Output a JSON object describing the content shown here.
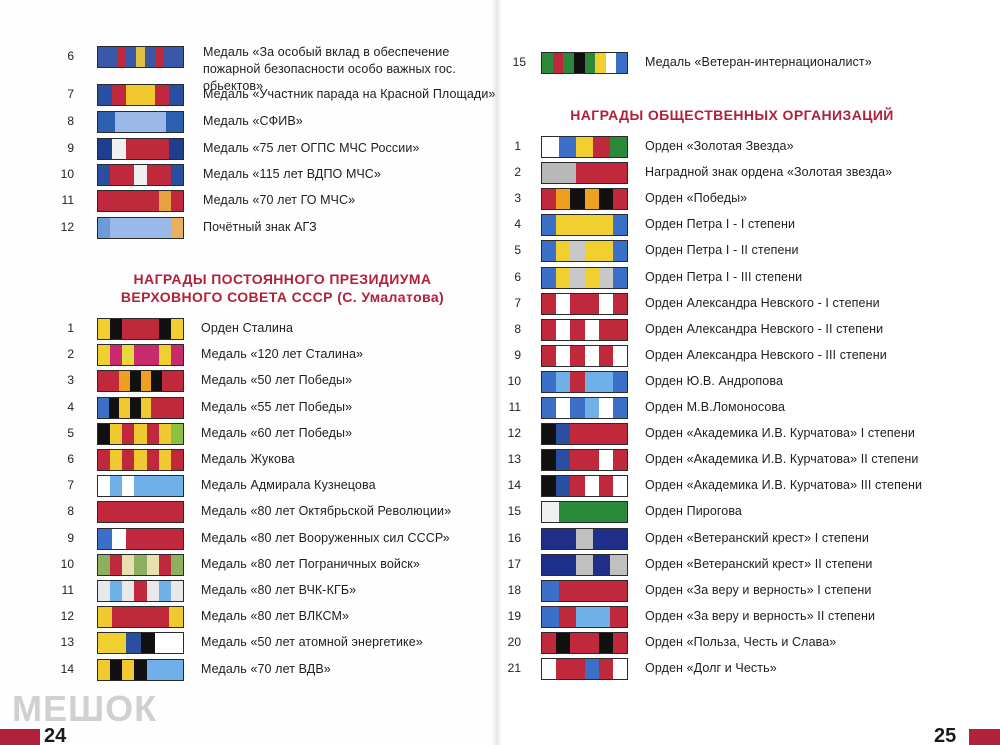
{
  "left_page": {
    "number": "24",
    "top_items": [
      {
        "num": "6",
        "label": "Медаль «За особый вклад в обеспечение пожарной безопасности особо важных гос. обьектов»",
        "ribbon": [
          "#3b58a8",
          "#3b58a8",
          "#c0283c",
          "#3b58a8",
          "#e0c040",
          "#3b58a8",
          "#c0283c",
          "#3b58a8",
          "#3b58a8"
        ]
      },
      {
        "num": "7",
        "label": "Медаль «Участник парада на Красной Площади»",
        "ribbon": [
          "#2a4fa0",
          "#c0283c",
          "#f0c830",
          "#f0c830",
          "#c0283c",
          "#2a4fa0"
        ]
      },
      {
        "num": "8",
        "label": "Медаль «СФИВ»",
        "ribbon": [
          "#2d5fb0",
          "#9ab8e8",
          "#9ab8e8",
          "#9ab8e8",
          "#2d5fb0"
        ]
      },
      {
        "num": "9",
        "label": "Медаль «75 лет ОГПС МЧС России»",
        "ribbon": [
          "#1e3f90",
          "#f0f0f0",
          "#c0283c",
          "#c0283c",
          "#c0283c",
          "#1e3f90"
        ]
      },
      {
        "num": "10",
        "label": "Медаль «115 лет ВДПО МЧС»",
        "ribbon": [
          "#2a4fa0",
          "#c0283c",
          "#c0283c",
          "#f0f0f0",
          "#c0283c",
          "#c0283c",
          "#2a4fa0"
        ]
      },
      {
        "num": "11",
        "label": "Медаль «70 лет ГО МЧС»",
        "ribbon": [
          "#c0283c",
          "#c0283c",
          "#c0283c",
          "#c0283c",
          "#c0283c",
          "#e8a040",
          "#c0283c"
        ]
      },
      {
        "num": "12",
        "label": "Почётный знак АГЗ",
        "ribbon": [
          "#6f9ad8",
          "#9ab8e8",
          "#9ab8e8",
          "#9ab8e8",
          "#9ab8e8",
          "#9ab8e8",
          "#e8b060"
        ]
      }
    ],
    "section_title_line1": "НАГРАДЫ ПОСТОЯННОГО ПРЕЗИДИУМА",
    "section_title_line2": "ВЕРХОВНОГО СОВЕТА СССР (С. Умалатова)",
    "section_items": [
      {
        "num": "1",
        "label": "Орден Сталина",
        "ribbon": [
          "#f0d030",
          "#111111",
          "#c0283c",
          "#c0283c",
          "#c0283c",
          "#111111",
          "#f0d030"
        ]
      },
      {
        "num": "2",
        "label": "Медаль «120 лет Сталина»",
        "ribbon": [
          "#f0d030",
          "#c82a6e",
          "#e8d840",
          "#c82a6e",
          "#c82a6e",
          "#f0d030",
          "#c82a6e"
        ]
      },
      {
        "num": "3",
        "label": "Медаль «50 лет Победы»",
        "ribbon": [
          "#c0283c",
          "#c0283c",
          "#f0a020",
          "#111111",
          "#f0a020",
          "#111111",
          "#c0283c",
          "#c0283c"
        ]
      },
      {
        "num": "4",
        "label": "Медаль «55 лет Победы»",
        "ribbon": [
          "#3b6fc8",
          "#111111",
          "#f0c830",
          "#111111",
          "#f0c830",
          "#c0283c",
          "#c0283c",
          "#c0283c"
        ]
      },
      {
        "num": "5",
        "label": "Медаль «60 лет Победы»",
        "ribbon": [
          "#111111",
          "#f0c830",
          "#c0283c",
          "#f0c830",
          "#c0283c",
          "#f0c830",
          "#8cc040"
        ]
      },
      {
        "num": "6",
        "label": "Медаль Жукова",
        "ribbon": [
          "#c0283c",
          "#f0c830",
          "#c0283c",
          "#f0c830",
          "#c0283c",
          "#f0c830",
          "#c0283c"
        ]
      },
      {
        "num": "7",
        "label": "Медаль Адмирала Кузнецова",
        "ribbon": [
          "#ffffff",
          "#6fb0e8",
          "#ffffff",
          "#6fb0e8",
          "#6fb0e8",
          "#6fb0e8",
          "#6fb0e8"
        ]
      },
      {
        "num": "8",
        "label": "Медаль «80 лет Октябрьской Революции»",
        "ribbon": [
          "#c0283c",
          "#c0283c",
          "#c0283c",
          "#c0283c",
          "#c0283c"
        ]
      },
      {
        "num": "9",
        "label": "Медаль «80 лет Вооруженных сил СССР»",
        "ribbon": [
          "#3b6fc8",
          "#ffffff",
          "#c0283c",
          "#c0283c",
          "#c0283c",
          "#c0283c"
        ]
      },
      {
        "num": "10",
        "label": "Медаль «80 лет Пограничных войск»",
        "ribbon": [
          "#8cb060",
          "#c0283c",
          "#e8e0b0",
          "#8cb060",
          "#e8e0b0",
          "#c0283c",
          "#8cb060"
        ]
      },
      {
        "num": "11",
        "label": "Медаль «80 лет ВЧК-КГБ»",
        "ribbon": [
          "#e8e8e8",
          "#6fb0e8",
          "#e8e8e8",
          "#c0283c",
          "#e8e8e8",
          "#6fb0e8",
          "#e8e8e8"
        ]
      },
      {
        "num": "12",
        "label": "Медаль «80 лет ВЛКСМ»",
        "ribbon": [
          "#f0c830",
          "#c0283c",
          "#c0283c",
          "#c0283c",
          "#c0283c",
          "#f0c830"
        ]
      },
      {
        "num": "13",
        "label": "Медаль «50 лет атомной энергетике»",
        "ribbon": [
          "#f0d030",
          "#f0d030",
          "#2a4fa0",
          "#111111",
          "#ffffff",
          "#ffffff"
        ]
      },
      {
        "num": "14",
        "label": "Медаль «70 лет ВДВ»",
        "ribbon": [
          "#f0c830",
          "#111111",
          "#f0c830",
          "#111111",
          "#6fb0e8",
          "#6fb0e8",
          "#6fb0e8"
        ]
      }
    ]
  },
  "right_page": {
    "number": "25",
    "top_items": [
      {
        "num": "15",
        "label": "Медаль «Ветеран-интернационалист»",
        "ribbon": [
          "#2a8a3a",
          "#c0283c",
          "#2a8a3a",
          "#111111",
          "#2a8a3a",
          "#f0d030",
          "#ffffff",
          "#3b6fc8"
        ]
      }
    ],
    "section_title": "НАГРАДЫ ОБЩЕСТВЕННЫХ ОРГАНИЗАЦИЙ",
    "section_items": [
      {
        "num": "1",
        "label": "Орден «Золотая Звезда»",
        "ribbon": [
          "#ffffff",
          "#3b6fc8",
          "#f0d030",
          "#c0283c",
          "#2a8a3a"
        ]
      },
      {
        "num": "2",
        "label": "Наградной знак ордена «Золотая звезда»",
        "ribbon": [
          "#b8b8b8",
          "#b8b8b8",
          "#c0283c",
          "#c0283c",
          "#c0283c"
        ]
      },
      {
        "num": "3",
        "label": "Орден «Победы»",
        "ribbon": [
          "#c0283c",
          "#f0a020",
          "#111111",
          "#f0a020",
          "#111111",
          "#c0283c"
        ]
      },
      {
        "num": "4",
        "label": "Орден Петра I - I степени",
        "ribbon": [
          "#3b6fc8",
          "#f0d030",
          "#f0d030",
          "#f0d030",
          "#f0d030",
          "#3b6fc8"
        ]
      },
      {
        "num": "5",
        "label": "Орден Петра I - II степени",
        "ribbon": [
          "#3b6fc8",
          "#f0d030",
          "#c8c8c8",
          "#f0d030",
          "#f0d030",
          "#3b6fc8"
        ]
      },
      {
        "num": "6",
        "label": "Орден Петра I - III степени",
        "ribbon": [
          "#3b6fc8",
          "#f0d030",
          "#c8c8c8",
          "#f0d030",
          "#c8c8c8",
          "#3b6fc8"
        ]
      },
      {
        "num": "7",
        "label": "Орден Александра Невского - I степени",
        "ribbon": [
          "#c0283c",
          "#ffffff",
          "#c0283c",
          "#c0283c",
          "#ffffff",
          "#c0283c"
        ]
      },
      {
        "num": "8",
        "label": "Орден Александра Невского - II степени",
        "ribbon": [
          "#c0283c",
          "#ffffff",
          "#c0283c",
          "#ffffff",
          "#c0283c",
          "#c0283c"
        ]
      },
      {
        "num": "9",
        "label": "Орден Александра Невского - III степени",
        "ribbon": [
          "#c0283c",
          "#ffffff",
          "#c0283c",
          "#ffffff",
          "#c0283c",
          "#ffffff"
        ]
      },
      {
        "num": "10",
        "label": "Орден Ю.В. Андропова",
        "ribbon": [
          "#3b6fc8",
          "#6fb0e8",
          "#c0283c",
          "#6fb0e8",
          "#6fb0e8",
          "#3b6fc8"
        ]
      },
      {
        "num": "11",
        "label": "Орден  М.В.Ломоносова",
        "ribbon": [
          "#3b6fc8",
          "#ffffff",
          "#3b6fc8",
          "#6fb0e8",
          "#ffffff",
          "#3b6fc8"
        ]
      },
      {
        "num": "12",
        "label": "Орден «Академика И.В. Курчатова» I степени",
        "ribbon": [
          "#111111",
          "#2a4fa0",
          "#c0283c",
          "#c0283c",
          "#c0283c",
          "#c0283c"
        ]
      },
      {
        "num": "13",
        "label": "Орден «Академика И.В. Курчатова» II степени",
        "ribbon": [
          "#111111",
          "#2a4fa0",
          "#c0283c",
          "#c0283c",
          "#ffffff",
          "#c0283c"
        ]
      },
      {
        "num": "14",
        "label": "Орден «Академика И.В. Курчатова» III степени",
        "ribbon": [
          "#111111",
          "#2a4fa0",
          "#c0283c",
          "#ffffff",
          "#c0283c",
          "#ffffff"
        ]
      },
      {
        "num": "15",
        "label": "Орден Пирогова",
        "ribbon": [
          "#f0f0f0",
          "#2a8a3a",
          "#2a8a3a",
          "#2a8a3a",
          "#2a8a3a"
        ]
      },
      {
        "num": "16",
        "label": "Орден «Ветеранский крест» I степени",
        "ribbon": [
          "#1e2f8a",
          "#1e2f8a",
          "#c0c0c0",
          "#1e2f8a",
          "#1e2f8a"
        ]
      },
      {
        "num": "17",
        "label": "Орден «Ветеранский крест» II степени",
        "ribbon": [
          "#1e2f8a",
          "#1e2f8a",
          "#c0c0c0",
          "#1e2f8a",
          "#c0c0c0"
        ]
      },
      {
        "num": "18",
        "label": "Орден «За веру и верность» I степени",
        "ribbon": [
          "#3b6fc8",
          "#c0283c",
          "#c0283c",
          "#c0283c",
          "#c0283c"
        ]
      },
      {
        "num": "19",
        "label": "Орден «За веру и верность» II степени",
        "ribbon": [
          "#3b6fc8",
          "#c0283c",
          "#6fb0e8",
          "#6fb0e8",
          "#c0283c"
        ]
      },
      {
        "num": "20",
        "label": "Орден «Польза, Честь и Слава»",
        "ribbon": [
          "#c0283c",
          "#111111",
          "#c0283c",
          "#c0283c",
          "#111111",
          "#c0283c"
        ]
      },
      {
        "num": "21",
        "label": "Орден «Долг и Честь»",
        "ribbon": [
          "#ffffff",
          "#c0283c",
          "#c0283c",
          "#3b6fc8",
          "#c0283c",
          "#ffffff"
        ]
      }
    ]
  },
  "watermark": "МЕШОК",
  "colors": {
    "heading": "#b1213a",
    "text": "#1e1e1e",
    "page_corner": "#b1213a"
  }
}
